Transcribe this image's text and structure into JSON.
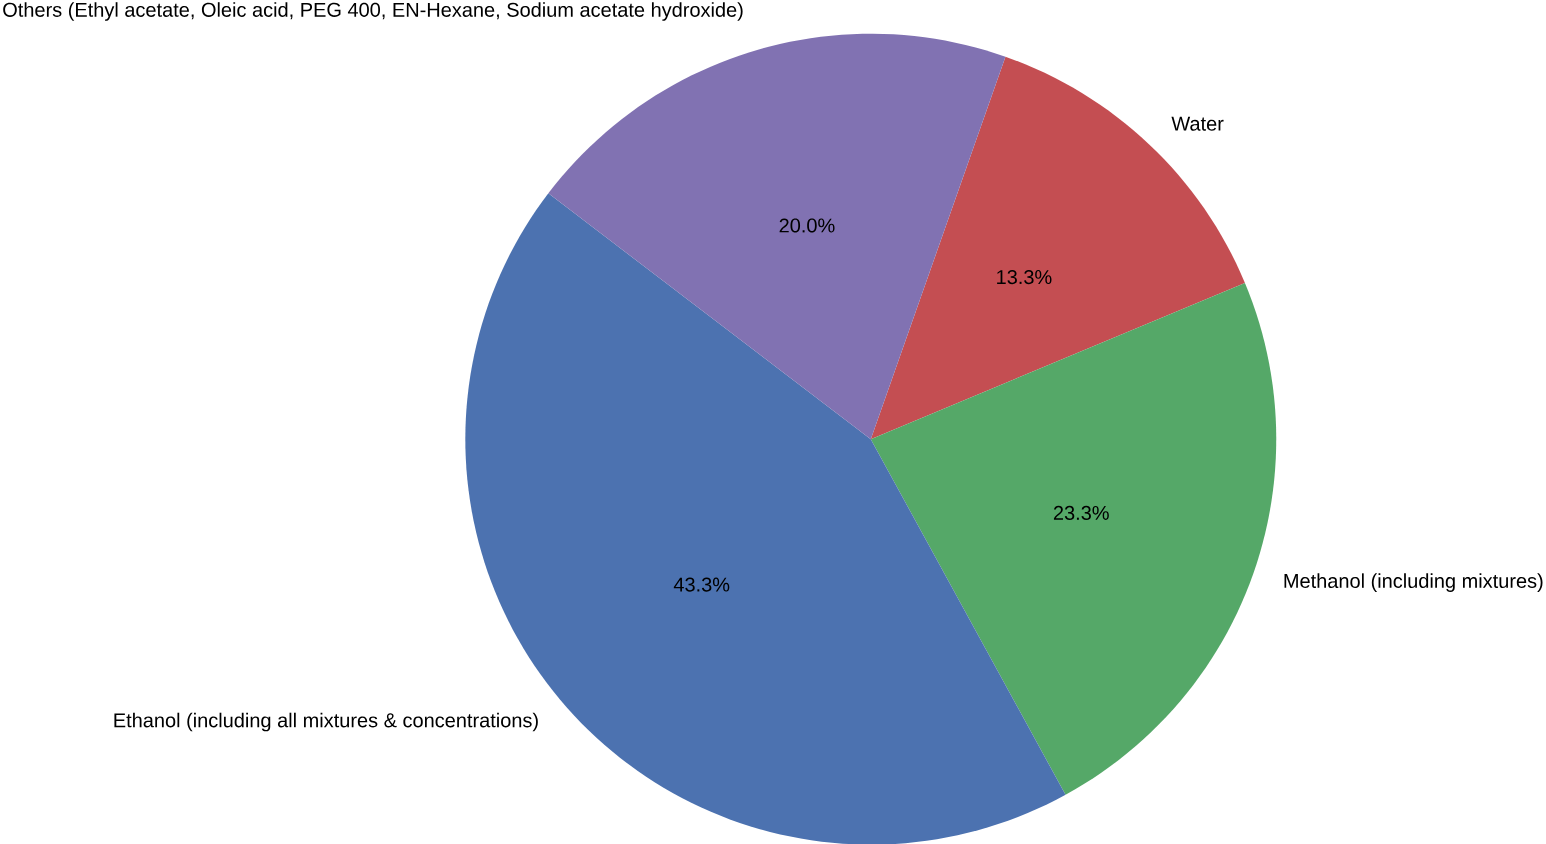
{
  "chart_data": {
    "type": "pie",
    "categories": [
      "Water",
      "Methanol (including mixtures)",
      "Ethanol (including all mixtures & concentrations)",
      "Others (Ethyl acetate, Oleic acid, PEG 400, EN-Hexane, Sodium acetate hydroxide)"
    ],
    "values": [
      13.3,
      23.3,
      43.3,
      20.0
    ],
    "colors": [
      "#c44e52",
      "#55a868",
      "#4c72b0",
      "#8172b2"
    ],
    "value_labels": [
      "13.3%",
      "23.3%",
      "43.3%",
      "20.0%"
    ]
  }
}
